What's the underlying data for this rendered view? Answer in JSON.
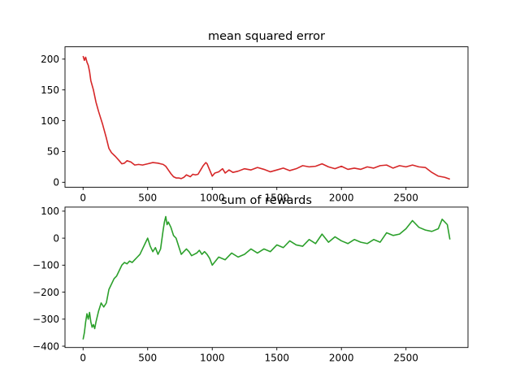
{
  "chart_data": [
    {
      "type": "line",
      "title": "mean squared error",
      "xlabel": "",
      "ylabel": "",
      "xlim": [
        -140,
        2980
      ],
      "ylim": [
        -8,
        220
      ],
      "xticks": [
        0,
        500,
        1000,
        1500,
        2000,
        2500
      ],
      "yticks": [
        0,
        50,
        100,
        150,
        200
      ],
      "grid": false,
      "series": [
        {
          "color": "#d62728",
          "x": [
            0,
            10,
            20,
            30,
            40,
            50,
            60,
            80,
            100,
            120,
            150,
            180,
            200,
            220,
            250,
            280,
            300,
            320,
            340,
            370,
            400,
            430,
            460,
            500,
            540,
            580,
            600,
            620,
            640,
            660,
            680,
            700,
            720,
            740,
            760,
            780,
            800,
            830,
            850,
            870,
            890,
            910,
            930,
            950,
            960,
            970,
            980,
            1000,
            1020,
            1050,
            1080,
            1100,
            1130,
            1160,
            1200,
            1250,
            1300,
            1350,
            1400,
            1450,
            1500,
            1550,
            1600,
            1650,
            1700,
            1750,
            1800,
            1850,
            1900,
            1950,
            2000,
            2050,
            2100,
            2150,
            2200,
            2250,
            2300,
            2350,
            2400,
            2450,
            2500,
            2550,
            2600,
            2650,
            2700,
            2750,
            2800,
            2840
          ],
          "values": [
            205,
            198,
            203,
            195,
            190,
            180,
            165,
            150,
            130,
            115,
            95,
            72,
            55,
            48,
            42,
            35,
            30,
            31,
            35,
            33,
            28,
            29,
            28,
            30,
            32,
            31,
            30,
            29,
            26,
            20,
            14,
            9,
            7,
            7,
            6,
            8,
            12,
            9,
            13,
            12,
            13,
            20,
            27,
            32,
            30,
            25,
            20,
            10,
            15,
            17,
            22,
            15,
            20,
            16,
            18,
            22,
            20,
            24,
            21,
            17,
            20,
            23,
            19,
            22,
            27,
            25,
            26,
            30,
            25,
            22,
            26,
            21,
            23,
            21,
            25,
            23,
            27,
            28,
            23,
            27,
            25,
            28,
            25,
            24,
            16,
            10,
            8,
            5
          ]
        }
      ]
    },
    {
      "type": "line",
      "title": "sum of rewards",
      "xlabel": "",
      "ylabel": "",
      "xlim": [
        -140,
        2980
      ],
      "ylim": [
        -405,
        115
      ],
      "xticks": [
        0,
        500,
        1000,
        1500,
        2000,
        2500
      ],
      "yticks": [
        -400,
        -300,
        -200,
        -100,
        0,
        100
      ],
      "grid": false,
      "series": [
        {
          "color": "#2ca02c",
          "x": [
            0,
            10,
            20,
            30,
            40,
            50,
            60,
            70,
            80,
            90,
            100,
            120,
            140,
            160,
            180,
            200,
            220,
            240,
            260,
            280,
            300,
            320,
            340,
            360,
            380,
            400,
            420,
            440,
            460,
            480,
            500,
            520,
            540,
            560,
            580,
            600,
            620,
            630,
            640,
            650,
            660,
            680,
            700,
            720,
            740,
            760,
            780,
            800,
            820,
            840,
            860,
            880,
            900,
            920,
            940,
            960,
            980,
            1000,
            1050,
            1100,
            1150,
            1200,
            1250,
            1300,
            1350,
            1400,
            1450,
            1500,
            1550,
            1600,
            1650,
            1700,
            1750,
            1800,
            1850,
            1900,
            1950,
            2000,
            2050,
            2100,
            2150,
            2200,
            2250,
            2300,
            2350,
            2400,
            2450,
            2500,
            2550,
            2600,
            2650,
            2700,
            2750,
            2780,
            2800,
            2820,
            2840
          ],
          "values": [
            -375,
            -350,
            -310,
            -280,
            -300,
            -275,
            -310,
            -330,
            -320,
            -335,
            -310,
            -270,
            -240,
            -255,
            -240,
            -190,
            -170,
            -150,
            -140,
            -120,
            -100,
            -90,
            -95,
            -85,
            -90,
            -80,
            -70,
            -60,
            -40,
            -20,
            0,
            -30,
            -50,
            -35,
            -60,
            -40,
            30,
            60,
            80,
            50,
            60,
            40,
            10,
            0,
            -30,
            -60,
            -50,
            -40,
            -50,
            -65,
            -60,
            -55,
            -45,
            -60,
            -50,
            -60,
            -75,
            -100,
            -70,
            -80,
            -55,
            -70,
            -60,
            -40,
            -55,
            -40,
            -50,
            -25,
            -35,
            -10,
            -25,
            -30,
            -5,
            -20,
            15,
            -15,
            5,
            -10,
            -20,
            -5,
            -15,
            -20,
            -5,
            -15,
            20,
            10,
            15,
            35,
            65,
            40,
            30,
            25,
            35,
            70,
            60,
            50,
            -5
          ]
        }
      ]
    }
  ]
}
